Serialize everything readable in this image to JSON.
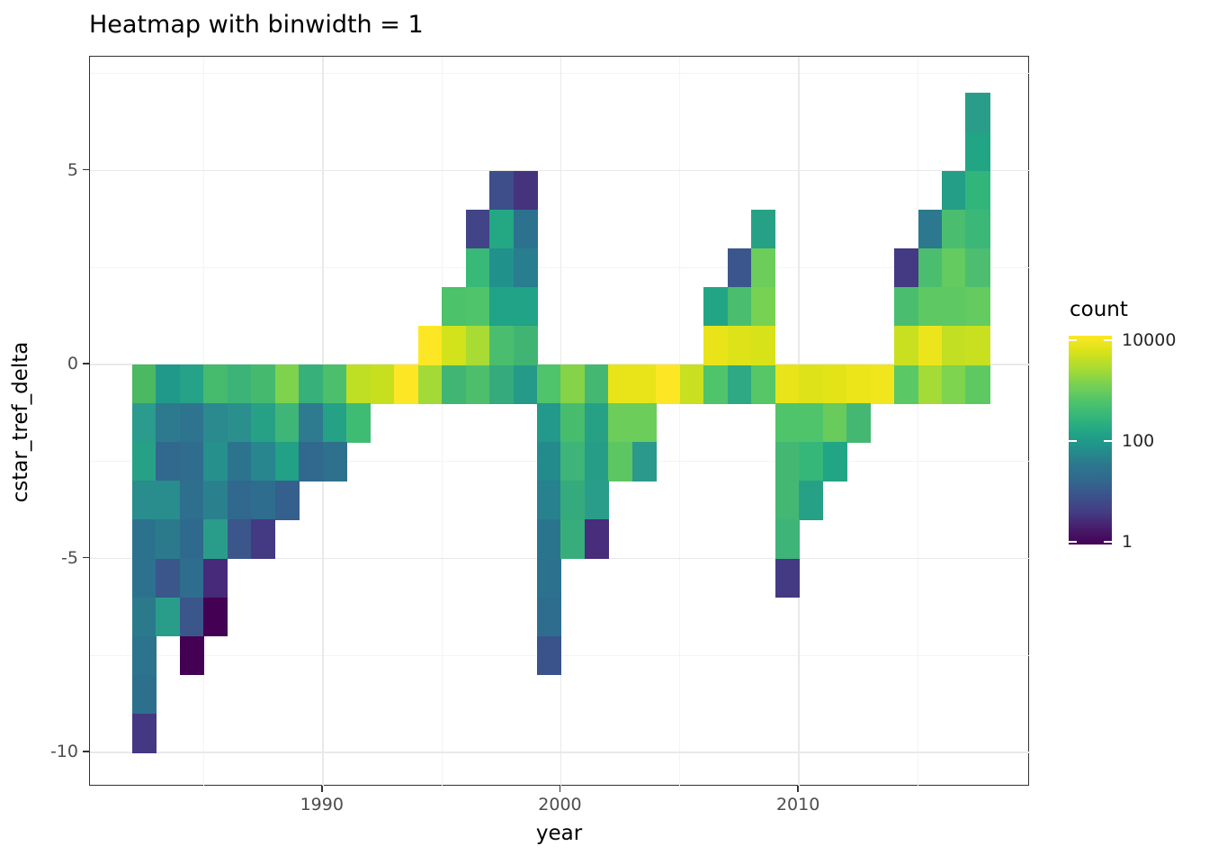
{
  "title": "Heatmap with binwidth = 1",
  "chart_data": {
    "type": "heatmap",
    "title": "Heatmap with binwidth = 1",
    "xlabel": "year",
    "ylabel": "cstar_tref_delta",
    "binwidth": 1,
    "x_bin_range": [
      1982,
      2018
    ],
    "y_bin_range": [
      -10,
      7
    ],
    "x_ticks": [
      {
        "label": "1990",
        "value": 1990
      },
      {
        "label": "2000",
        "value": 2000
      },
      {
        "label": "2010",
        "value": 2010
      }
    ],
    "x_minor_gridlines": [
      1985,
      1995,
      2005,
      2015
    ],
    "y_ticks": [
      {
        "label": "5",
        "value": 5
      },
      {
        "label": "0",
        "value": 0
      },
      {
        "label": "-5",
        "value": -5
      },
      {
        "label": "-10",
        "value": -10
      }
    ],
    "y_minor_gridlines": [
      7.5,
      2.5,
      -2.5,
      -7.5
    ],
    "grid": true,
    "legend": {
      "title": "count",
      "position": "right",
      "scale": "log10",
      "ticks": [
        {
          "label": "10000",
          "value": 10000
        },
        {
          "label": "100",
          "value": 100
        },
        {
          "label": "1",
          "value": 1
        }
      ],
      "colormap": "viridis",
      "gradient_top_to_bottom": [
        "#fde725",
        "#d8e219",
        "#aadc32",
        "#7ad151",
        "#52c569",
        "#35b779",
        "#21a585",
        "#21918c",
        "#2c788e",
        "#31688e",
        "#3b528b",
        "#443c84",
        "#471d6b",
        "#440154"
      ]
    },
    "cells_format": [
      "year_bin_start",
      "y_bin_start",
      "color",
      "approx_count"
    ],
    "cells": [
      [
        1982,
        -1,
        "#4bb862",
        420
      ],
      [
        1983,
        -1,
        "#21998a",
        95
      ],
      [
        1984,
        -1,
        "#25a287",
        150
      ],
      [
        1985,
        -1,
        "#46ba6d",
        430
      ],
      [
        1986,
        -1,
        "#3cb377",
        280
      ],
      [
        1987,
        -1,
        "#45ba6e",
        420
      ],
      [
        1988,
        -1,
        "#7ed24e",
        1400
      ],
      [
        1989,
        -1,
        "#37b07a",
        250
      ],
      [
        1990,
        -1,
        "#4dbf6c",
        490
      ],
      [
        1991,
        -1,
        "#bfdf25",
        3700
      ],
      [
        1992,
        -1,
        "#c6e01f",
        4400
      ],
      [
        1993,
        -1,
        "#fde725",
        11000
      ],
      [
        1994,
        -1,
        "#a3da37",
        2500
      ],
      [
        1995,
        -1,
        "#41b573",
        360
      ],
      [
        1996,
        -1,
        "#4dbf6c",
        490
      ],
      [
        1997,
        -1,
        "#35ab7d",
        225
      ],
      [
        1998,
        -1,
        "#259a88",
        110
      ],
      [
        1999,
        -1,
        "#4fc46a",
        530
      ],
      [
        2000,
        -1,
        "#85d348",
        1600
      ],
      [
        2001,
        -1,
        "#44b873",
        380
      ],
      [
        2002,
        -1,
        "#e8e419",
        7300
      ],
      [
        2003,
        -1,
        "#e8e419",
        7300
      ],
      [
        2004,
        -1,
        "#fde725",
        11000
      ],
      [
        2005,
        -1,
        "#c8e020",
        4300
      ],
      [
        2006,
        -1,
        "#4fc46a",
        540
      ],
      [
        2007,
        -1,
        "#2fa884",
        195
      ],
      [
        2008,
        -1,
        "#57c666",
        640
      ],
      [
        2009,
        -1,
        "#e8e419",
        7300
      ],
      [
        2010,
        -1,
        "#dde318",
        6300
      ],
      [
        2011,
        -1,
        "#e3e418",
        6800
      ],
      [
        2012,
        -1,
        "#ebe51a",
        7600
      ],
      [
        2013,
        -1,
        "#f1e51d",
        8500
      ],
      [
        2014,
        -1,
        "#5ac864",
        680
      ],
      [
        2015,
        -1,
        "#a5db36",
        2600
      ],
      [
        2016,
        -1,
        "#7ed34f",
        1400
      ],
      [
        2017,
        -1,
        "#5ec962",
        730
      ],
      [
        1982,
        -2,
        "#2a9b8c",
        105
      ],
      [
        1983,
        -2,
        "#2d7a8e",
        27
      ],
      [
        1984,
        -2,
        "#2f748e",
        22
      ],
      [
        1985,
        -2,
        "#2b8a8e",
        52
      ],
      [
        1986,
        -2,
        "#2a8f8d",
        58
      ],
      [
        1987,
        -2,
        "#27a186",
        140
      ],
      [
        1988,
        -2,
        "#3fb577",
        300
      ],
      [
        1989,
        -2,
        "#2e7a8e",
        27
      ],
      [
        1990,
        -2,
        "#25a186",
        140
      ],
      [
        1991,
        -2,
        "#3fbc73",
        370
      ],
      [
        1999,
        -2,
        "#22998a",
        95
      ],
      [
        2000,
        -2,
        "#48bc6d",
        440
      ],
      [
        2001,
        -2,
        "#26a186",
        140
      ],
      [
        2002,
        -2,
        "#6ccd5a",
        980
      ],
      [
        2003,
        -2,
        "#6ccd5a",
        980
      ],
      [
        2009,
        -2,
        "#50c46a",
        540
      ],
      [
        2010,
        -2,
        "#50c46a",
        540
      ],
      [
        2011,
        -2,
        "#68cb5c",
        900
      ],
      [
        2012,
        -2,
        "#44b873",
        380
      ],
      [
        1982,
        -3,
        "#26a186",
        140
      ],
      [
        1983,
        -3,
        "#31688e",
        15
      ],
      [
        1984,
        -3,
        "#2f6c8e",
        18
      ],
      [
        1985,
        -3,
        "#26918c",
        62
      ],
      [
        1986,
        -3,
        "#2c748e",
        23
      ],
      [
        1987,
        -3,
        "#27868e",
        45
      ],
      [
        1988,
        -3,
        "#22a186",
        140
      ],
      [
        1989,
        -3,
        "#31688e",
        15
      ],
      [
        1990,
        -3,
        "#2e718e",
        21
      ],
      [
        1999,
        -3,
        "#248b8d",
        52
      ],
      [
        2000,
        -3,
        "#3eb478",
        310
      ],
      [
        2001,
        -3,
        "#259d87",
        115
      ],
      [
        2002,
        -3,
        "#5cc663",
        700
      ],
      [
        2003,
        -3,
        "#2b998c",
        95
      ],
      [
        2009,
        -3,
        "#44b873",
        380
      ],
      [
        2010,
        -3,
        "#35b779",
        270
      ],
      [
        2011,
        -3,
        "#21a585",
        140
      ],
      [
        1982,
        -4,
        "#298c8d",
        55
      ],
      [
        1983,
        -4,
        "#298c8d",
        55
      ],
      [
        1984,
        -4,
        "#2e6f8e",
        19
      ],
      [
        1985,
        -4,
        "#2b808e",
        33
      ],
      [
        1986,
        -4,
        "#31688e",
        15
      ],
      [
        1987,
        -4,
        "#2e6d8e",
        18
      ],
      [
        1988,
        -4,
        "#355f8d",
        11
      ],
      [
        1999,
        -4,
        "#27818e",
        33
      ],
      [
        2000,
        -4,
        "#35ab7d",
        225
      ],
      [
        2001,
        -4,
        "#2a9d8a",
        110
      ],
      [
        2009,
        -4,
        "#44b873",
        380
      ],
      [
        2010,
        -4,
        "#26a186",
        140
      ],
      [
        1982,
        -5,
        "#2c728e",
        22
      ],
      [
        1983,
        -5,
        "#2b7a8c",
        27
      ],
      [
        1984,
        -5,
        "#30698e",
        16
      ],
      [
        1985,
        -5,
        "#2a9d8a",
        110
      ],
      [
        1986,
        -5,
        "#3b568b",
        8
      ],
      [
        1987,
        -5,
        "#443983",
        5
      ],
      [
        1999,
        -5,
        "#2b748e",
        22
      ],
      [
        2000,
        -5,
        "#37ad7b",
        240
      ],
      [
        2001,
        -5,
        "#472d7b",
        3
      ],
      [
        2009,
        -5,
        "#3eb478",
        310
      ],
      [
        1982,
        -6,
        "#2c728e",
        22
      ],
      [
        1983,
        -6,
        "#3b568b",
        8
      ],
      [
        1984,
        -6,
        "#2f6d8e",
        18
      ],
      [
        1985,
        -6,
        "#472a7a",
        3
      ],
      [
        1999,
        -6,
        "#2c728e",
        22
      ],
      [
        2009,
        -6,
        "#443983",
        5
      ],
      [
        1982,
        -7,
        "#2b7a8c",
        27
      ],
      [
        1983,
        -7,
        "#2a9d8a",
        110
      ],
      [
        1984,
        -7,
        "#3b568b",
        8
      ],
      [
        1985,
        -7,
        "#440154",
        1
      ],
      [
        1999,
        -7,
        "#2e6d8e",
        18
      ],
      [
        1982,
        -8,
        "#2c748e",
        23
      ],
      [
        1984,
        -8,
        "#440154",
        1
      ],
      [
        1999,
        -8,
        "#3b538b",
        8
      ],
      [
        1982,
        -9,
        "#2d708e",
        19
      ],
      [
        1982,
        -10,
        "#453882",
        5
      ],
      [
        1994,
        0,
        "#fde725",
        11000
      ],
      [
        1995,
        0,
        "#d2e21b",
        5400
      ],
      [
        1996,
        0,
        "#a8db34",
        2700
      ],
      [
        1997,
        0,
        "#4abe6e",
        480
      ],
      [
        1998,
        0,
        "#40b573",
        350
      ],
      [
        2006,
        0,
        "#e8e419",
        7300
      ],
      [
        2007,
        0,
        "#dde318",
        6300
      ],
      [
        2008,
        0,
        "#d8e219",
        5700
      ],
      [
        2014,
        0,
        "#c8e020",
        4300
      ],
      [
        2015,
        0,
        "#ede51b",
        8400
      ],
      [
        2016,
        0,
        "#c2df23",
        4100
      ],
      [
        2017,
        0,
        "#c8e020",
        4300
      ],
      [
        1995,
        1,
        "#4cc26a",
        510
      ],
      [
        1996,
        1,
        "#50c46a",
        540
      ],
      [
        1997,
        1,
        "#20a386",
        150
      ],
      [
        1998,
        1,
        "#20a386",
        150
      ],
      [
        2006,
        1,
        "#21a585",
        140
      ],
      [
        2007,
        1,
        "#4abe6e",
        480
      ],
      [
        2008,
        1,
        "#77d153",
        1300
      ],
      [
        2014,
        1,
        "#4abe6e",
        480
      ],
      [
        2015,
        1,
        "#5ec962",
        730
      ],
      [
        2016,
        1,
        "#5ec962",
        730
      ],
      [
        2017,
        1,
        "#63cb5f",
        820
      ],
      [
        1996,
        2,
        "#38b977",
        290
      ],
      [
        1997,
        2,
        "#21918c",
        70
      ],
      [
        1998,
        2,
        "#287d8e",
        30
      ],
      [
        2007,
        2,
        "#3b568c",
        8
      ],
      [
        2008,
        2,
        "#6ccd5a",
        980
      ],
      [
        2014,
        2,
        "#443983",
        5
      ],
      [
        2015,
        2,
        "#4abe6e",
        480
      ],
      [
        2016,
        2,
        "#63cb5f",
        820
      ],
      [
        2017,
        2,
        "#4dbe70",
        490
      ],
      [
        1996,
        3,
        "#414487",
        6
      ],
      [
        1997,
        3,
        "#23a883",
        165
      ],
      [
        1998,
        3,
        "#2c728e",
        22
      ],
      [
        2008,
        3,
        "#26a186",
        140
      ],
      [
        2015,
        3,
        "#2c788e",
        28
      ],
      [
        2016,
        3,
        "#4abe6e",
        480
      ],
      [
        2017,
        3,
        "#3bb778",
        280
      ],
      [
        1997,
        4,
        "#3d4e8a",
        9
      ],
      [
        1998,
        4,
        "#45337d",
        4
      ],
      [
        2016,
        4,
        "#249e87",
        120
      ],
      [
        2017,
        4,
        "#31b57b",
        260
      ],
      [
        2017,
        5,
        "#21a585",
        140
      ],
      [
        2017,
        6,
        "#2a9d8a",
        110
      ]
    ]
  }
}
